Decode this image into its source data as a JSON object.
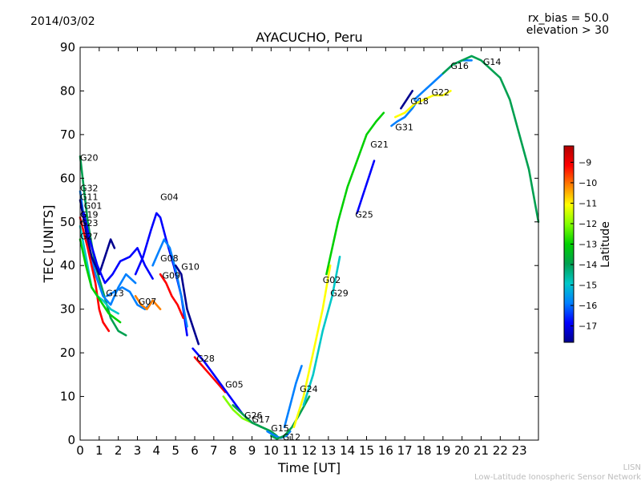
{
  "date": "2014/03/02",
  "info": {
    "rx_bias": "rx_bias = 50.0",
    "elevation": "elevation > 30"
  },
  "credits": {
    "short": "LISN",
    "full": "Low-Latitude Ionospheric Sensor Network"
  },
  "chart_data": {
    "type": "line",
    "title": "AYACUCHO, Peru",
    "xlabel": "Time [UT]",
    "ylabel": "TEC [UNITS]",
    "xlim": [
      0,
      24
    ],
    "ylim": [
      0,
      90
    ],
    "xticks": [
      0,
      1,
      2,
      3,
      4,
      5,
      6,
      7,
      8,
      9,
      10,
      11,
      12,
      13,
      14,
      15,
      16,
      17,
      18,
      19,
      20,
      21,
      22,
      23
    ],
    "yticks": [
      0,
      10,
      20,
      30,
      40,
      50,
      60,
      70,
      80,
      90
    ],
    "colorbar": {
      "label": "Latitude",
      "range": [
        -17.8,
        -8.2
      ],
      "ticks": [
        -9,
        -10,
        -11,
        -12,
        -13,
        -14,
        -15,
        -16,
        -17
      ],
      "colors": [
        "#00008f",
        "#0000ff",
        "#0080ff",
        "#00c8c8",
        "#00a050",
        "#00d000",
        "#80ff00",
        "#ffff00",
        "#ff8000",
        "#ff0000",
        "#b00000"
      ]
    },
    "series": [
      {
        "name": "G20",
        "lat": -14.0,
        "x": [
          0.0,
          0.4,
          0.8,
          1.2,
          1.6,
          2.0,
          2.4
        ],
        "y": [
          65,
          50,
          40,
          34,
          28,
          25,
          24
        ]
      },
      {
        "name": "G32",
        "lat": -16.0,
        "x": [
          0.0,
          0.4,
          0.8,
          1.2,
          1.6,
          2.0,
          2.4,
          2.9
        ],
        "y": [
          57,
          45,
          38,
          33,
          31,
          35,
          38,
          36
        ]
      },
      {
        "name": "G11",
        "lat": -17.5,
        "x": [
          0.0,
          0.3,
          0.6,
          1.0,
          1.3,
          1.6,
          1.8
        ],
        "y": [
          55,
          48,
          42,
          38,
          42,
          46,
          44
        ]
      },
      {
        "name": "G01",
        "lat": -16.5,
        "x": [
          0.2,
          0.5,
          0.9,
          1.3,
          1.7,
          2.1,
          2.6,
          3.0,
          3.4,
          3.8
        ],
        "y": [
          52,
          46,
          40,
          36,
          38,
          41,
          42,
          44,
          40,
          37
        ]
      },
      {
        "name": "G19",
        "lat": -9.5,
        "x": [
          0.0,
          0.4,
          0.8,
          1.0,
          1.2,
          1.5
        ],
        "y": [
          51,
          44,
          36,
          30,
          27,
          25
        ]
      },
      {
        "name": "G23",
        "lat": -14.5,
        "x": [
          0.0,
          0.3,
          0.6,
          0.9,
          1.2,
          1.6,
          2.0
        ],
        "y": [
          49,
          42,
          35,
          33,
          32,
          30,
          29
        ]
      },
      {
        "name": "G27",
        "lat": -13.0,
        "x": [
          0.0,
          0.3,
          0.6,
          0.9,
          1.2,
          1.5,
          1.8,
          2.1
        ],
        "y": [
          46,
          40,
          35,
          33,
          31,
          29,
          28,
          27
        ]
      },
      {
        "name": "G13",
        "lat": -15.5,
        "x": [
          1.4,
          1.8,
          2.2,
          2.6,
          3.0,
          3.4,
          3.8
        ],
        "y": [
          33,
          34,
          35,
          34,
          31,
          30,
          32
        ]
      },
      {
        "name": "G07",
        "lat": -10.0,
        "x": [
          2.9,
          3.2,
          3.5,
          3.8,
          4.2
        ],
        "y": [
          33,
          31,
          30,
          32,
          30
        ]
      },
      {
        "name": "G04",
        "lat": -17.3,
        "x": [
          2.9,
          3.3,
          3.7,
          4.0,
          4.2,
          4.5,
          4.9,
          5.3,
          5.6
        ],
        "y": [
          38,
          42,
          48,
          52,
          51,
          46,
          40,
          33,
          24
        ]
      },
      {
        "name": "G08",
        "lat": -16.0,
        "x": [
          3.8,
          4.1,
          4.4,
          4.7,
          5.0,
          5.3,
          5.6
        ],
        "y": [
          40,
          43,
          46,
          44,
          39,
          33,
          26
        ]
      },
      {
        "name": "G09",
        "lat": -9.5,
        "x": [
          4.2,
          4.5,
          4.8,
          5.1,
          5.4
        ],
        "y": [
          38,
          36,
          33,
          31,
          28
        ]
      },
      {
        "name": "G10",
        "lat": -17.5,
        "x": [
          5.0,
          5.3,
          5.6,
          5.9,
          6.2
        ],
        "y": [
          40,
          38,
          30,
          26,
          22
        ]
      },
      {
        "name": "G28",
        "lat": -9.0,
        "x": [
          6.0,
          6.4,
          6.8,
          7.2,
          7.6
        ],
        "y": [
          19,
          17,
          15,
          13,
          11
        ]
      },
      {
        "name": "G05",
        "lat": -16.5,
        "x": [
          5.9,
          6.5,
          7.0,
          7.5,
          8.0,
          8.5,
          9.0,
          9.5
        ],
        "y": [
          21,
          18,
          15,
          12,
          9,
          6,
          4,
          3
        ]
      },
      {
        "name": "G26",
        "lat": -12.0,
        "x": [
          7.5,
          8.0,
          8.5,
          9.0,
          9.5,
          10.0
        ],
        "y": [
          10,
          7,
          5,
          4,
          3,
          2
        ]
      },
      {
        "name": "G17",
        "lat": -13.5,
        "x": [
          8.0,
          8.5,
          9.0,
          9.5,
          10.0,
          10.3
        ],
        "y": [
          8,
          6,
          4,
          3,
          2,
          1
        ]
      },
      {
        "name": "G15",
        "lat": -15.5,
        "x": [
          9.8,
          10.2,
          10.5,
          10.8,
          11.0
        ],
        "y": [
          2,
          1,
          0.5,
          1,
          2
        ]
      },
      {
        "name": "G12",
        "lat": -14.0,
        "x": [
          10.0,
          10.3,
          10.7,
          11.1,
          11.5,
          12.0
        ],
        "y": [
          1,
          0.3,
          1,
          3,
          6,
          10
        ]
      },
      {
        "name": "G24",
        "lat": -16.0,
        "x": [
          10.7,
          11.0,
          11.3,
          11.6
        ],
        "y": [
          3,
          8,
          13,
          17
        ]
      },
      {
        "name": "G02",
        "lat": -11.0,
        "x": [
          11.2,
          11.7,
          12.2,
          12.7,
          13.1
        ],
        "y": [
          3,
          10,
          20,
          30,
          40
        ]
      },
      {
        "name": "G29",
        "lat": -15.0,
        "x": [
          11.7,
          12.2,
          12.7,
          13.2,
          13.6
        ],
        "y": [
          8,
          15,
          25,
          33,
          42
        ]
      },
      {
        "name": "G25",
        "lat": -17.3,
        "x": [
          14.5,
          14.8,
          15.1,
          15.4
        ],
        "y": [
          52,
          56,
          60,
          64
        ]
      },
      {
        "name": "G21",
        "lat": -13.0,
        "x": [
          12.9,
          13.5,
          14.0,
          14.5,
          15.0,
          15.5,
          15.9
        ],
        "y": [
          38,
          50,
          58,
          64,
          70,
          73,
          75
        ]
      },
      {
        "name": "G31",
        "lat": -16.0,
        "x": [
          16.3,
          16.6,
          17.0,
          17.4,
          17.7
        ],
        "y": [
          72,
          73,
          74,
          76,
          78
        ]
      },
      {
        "name": "G18",
        "lat": -17.5,
        "x": [
          16.8,
          17.1,
          17.4
        ],
        "y": [
          76,
          78,
          80
        ]
      },
      {
        "name": "G22",
        "lat": -11.5,
        "x": [
          16.5,
          17.0,
          17.5,
          18.0,
          18.5,
          19.0,
          19.4
        ],
        "y": [
          74,
          75,
          77,
          78,
          79,
          79,
          80
        ]
      },
      {
        "name": "G16",
        "lat": -15.5,
        "x": [
          17.5,
          18.0,
          18.5,
          19.0,
          19.5,
          20.0,
          20.5
        ],
        "y": [
          78,
          80,
          82,
          84,
          86,
          87,
          87
        ]
      },
      {
        "name": "G14",
        "lat": -14.0,
        "x": [
          19.0,
          19.5,
          20.0,
          20.5,
          21.0,
          21.5,
          22.0,
          22.5,
          23.0,
          23.5,
          24.0
        ],
        "y": [
          84,
          86,
          87,
          88,
          87,
          85,
          83,
          78,
          70,
          62,
          50
        ]
      }
    ],
    "labels": [
      {
        "text": "G20",
        "x": 0.0,
        "y": 64
      },
      {
        "text": "G32",
        "x": 0.0,
        "y": 57
      },
      {
        "text": "G11",
        "x": 0.0,
        "y": 55
      },
      {
        "text": "G01",
        "x": 0.2,
        "y": 53
      },
      {
        "text": "G19",
        "x": 0.0,
        "y": 51
      },
      {
        "text": "G23",
        "x": 0.0,
        "y": 49
      },
      {
        "text": "G27",
        "x": 0.0,
        "y": 46
      },
      {
        "text": "G13",
        "x": 1.35,
        "y": 33
      },
      {
        "text": "G07",
        "x": 3.05,
        "y": 31
      },
      {
        "text": "G04",
        "x": 4.2,
        "y": 55
      },
      {
        "text": "G08",
        "x": 4.2,
        "y": 41
      },
      {
        "text": "G09",
        "x": 4.3,
        "y": 37
      },
      {
        "text": "G10",
        "x": 5.3,
        "y": 39
      },
      {
        "text": "G28",
        "x": 6.1,
        "y": 18
      },
      {
        "text": "G05",
        "x": 7.6,
        "y": 12
      },
      {
        "text": "G26",
        "x": 8.6,
        "y": 5
      },
      {
        "text": "G17",
        "x": 9.0,
        "y": 4
      },
      {
        "text": "G15",
        "x": 10.0,
        "y": 2
      },
      {
        "text": "G12",
        "x": 10.6,
        "y": 0
      },
      {
        "text": "G24",
        "x": 11.5,
        "y": 11
      },
      {
        "text": "G02",
        "x": 12.7,
        "y": 36
      },
      {
        "text": "G29",
        "x": 13.1,
        "y": 33
      },
      {
        "text": "G25",
        "x": 14.4,
        "y": 51
      },
      {
        "text": "G21",
        "x": 15.2,
        "y": 67
      },
      {
        "text": "G31",
        "x": 16.5,
        "y": 71
      },
      {
        "text": "G18",
        "x": 17.3,
        "y": 77
      },
      {
        "text": "G22",
        "x": 18.4,
        "y": 79
      },
      {
        "text": "G16",
        "x": 19.4,
        "y": 85
      },
      {
        "text": "G14",
        "x": 21.1,
        "y": 86
      }
    ]
  }
}
